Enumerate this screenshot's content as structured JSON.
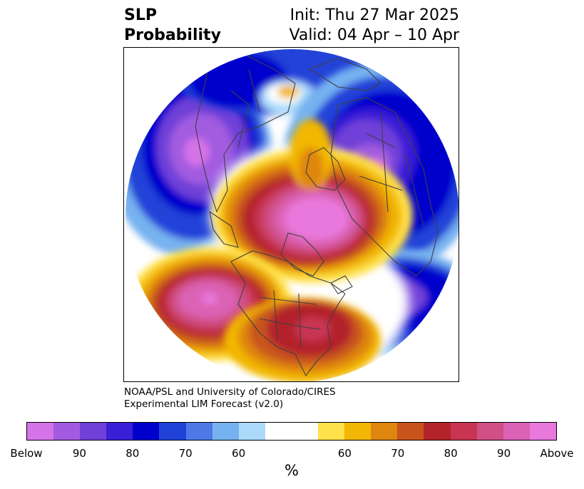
{
  "header": {
    "title_line1": "SLP",
    "title_line2": "Probability",
    "init": "Init: Thu 27 Mar 2025",
    "valid": "Valid: 04 Apr – 10 Apr"
  },
  "credit": {
    "line1": "NOAA/PSL and University of Colorado/CIRES",
    "line2": "Experimental LIM Forecast (v2.0)"
  },
  "colorbar": {
    "colors": [
      "#d573e8",
      "#a25be0",
      "#7040d8",
      "#3a1fd6",
      "#0000cc",
      "#2142d8",
      "#4d78e6",
      "#76b2f0",
      "#aad9fa",
      "#ffffff",
      "#ffffff",
      "#ffe14a",
      "#f2b705",
      "#df860f",
      "#c8541b",
      "#b3242a",
      "#c73552",
      "#cf4f86",
      "#db62b4",
      "#e878dc"
    ],
    "tick_labels": [
      "Below",
      "90",
      "80",
      "70",
      "60",
      "60",
      "70",
      "80",
      "90",
      "Above"
    ],
    "unit": "%"
  },
  "map": {
    "projection": "north-polar-stereographic",
    "palette": {
      "land_outline": "#404040",
      "below_strong": "#a25be0",
      "below_mid": "#2142d8",
      "below_weak": "#aad9fa",
      "above_weak": "#f2b705",
      "above_mid": "#b3242a",
      "above_strong": "#db62b4"
    }
  }
}
